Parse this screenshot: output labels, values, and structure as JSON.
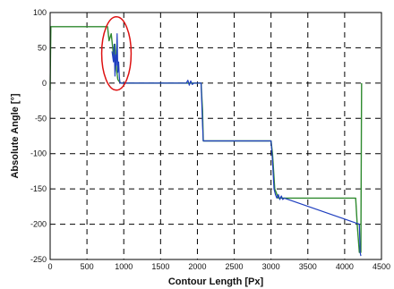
{
  "chart_data": {
    "type": "line",
    "title": "",
    "xlabel": "Contour Length [Px]",
    "ylabel": "Absolute Angle [°]",
    "xlim": [
      0,
      4500
    ],
    "ylim": [
      -250,
      100
    ],
    "xticks": [
      0,
      500,
      1000,
      1500,
      2000,
      2500,
      3000,
      3500,
      4000,
      4500
    ],
    "yticks": [
      100,
      50,
      0,
      -50,
      -100,
      -150,
      -200,
      -250
    ],
    "grid": true,
    "grid_style": "dashed",
    "colors": {
      "series_green": "#2f8a2f",
      "series_blue": "#1f3fbf",
      "annotation": "#dd1111",
      "grid": "#000000"
    },
    "series": [
      {
        "color": "#2f8a2f",
        "x": [
          0,
          5,
          10,
          100,
          780,
          800,
          830,
          860,
          880,
          900,
          920,
          940,
          960,
          980,
          1000,
          1900,
          1950,
          2000,
          2050,
          2070,
          2080,
          2100,
          3000,
          3020,
          3050,
          3070,
          3100,
          3150,
          3200,
          4130,
          4150,
          4170,
          4200,
          4220,
          4230
        ],
        "y": [
          -10,
          40,
          80,
          80,
          80,
          60,
          70,
          40,
          55,
          20,
          5,
          2,
          0,
          0,
          0,
          0,
          0,
          0,
          0,
          -40,
          -82,
          -82,
          -82,
          -100,
          -150,
          -155,
          -163,
          -163,
          -163,
          -163,
          -163,
          -200,
          -240,
          -240,
          0
        ]
      },
      {
        "color": "#1f3fbf",
        "x": [
          840,
          860,
          870,
          880,
          890,
          900,
          910,
          920,
          930,
          940,
          950,
          1850,
          1870,
          1890,
          1910,
          1930,
          1950,
          2050,
          2060,
          2070,
          2080,
          2950,
          3000,
          3020,
          3040,
          3060,
          3080,
          3100,
          3120,
          3140,
          3160,
          3180,
          4200,
          4210,
          4220
        ],
        "y": [
          45,
          30,
          55,
          10,
          40,
          25,
          70,
          15,
          30,
          8,
          0,
          0,
          4,
          -3,
          3,
          -2,
          0,
          0,
          -30,
          -60,
          -82,
          -82,
          -82,
          -110,
          -150,
          -158,
          -163,
          -158,
          -165,
          -160,
          -165,
          -163,
          -200,
          -240,
          -245
        ]
      }
    ],
    "annotation": {
      "shape": "ellipse",
      "color": "#dd1111",
      "center": [
        900,
        42
      ],
      "radius_x": 200,
      "radius_y": 52
    }
  }
}
